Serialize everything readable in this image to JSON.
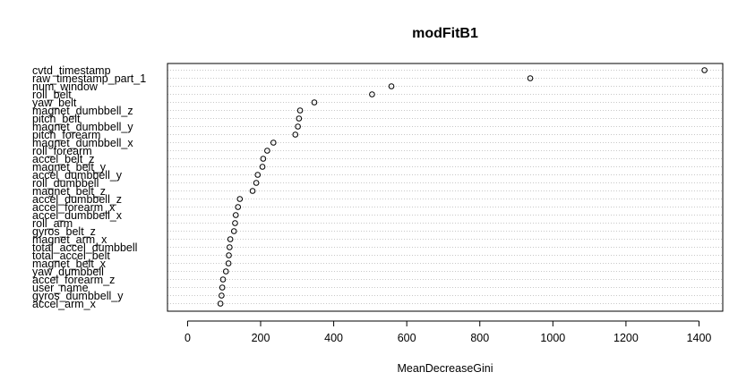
{
  "chart_data": {
    "type": "scatter",
    "title": "modFitB1",
    "xlabel": "MeanDecreaseGini",
    "ylabel": "",
    "xlim": [
      -55,
      1465
    ],
    "xticks": [
      0,
      200,
      400,
      600,
      800,
      1000,
      1200,
      1400
    ],
    "grid": "horizontal dotted lines per variable",
    "series": [
      {
        "categories": [
          "cvtd_timestamp",
          "raw_timestamp_part_1",
          "num_window",
          "roll_belt",
          "yaw_belt",
          "magnet_dumbbell_z",
          "pitch_belt",
          "magnet_dumbbell_y",
          "pitch_forearm",
          "magnet_dumbbell_x",
          "roll_forearm",
          "accel_belt_z",
          "magnet_belt_y",
          "accel_dumbbell_y",
          "roll_dumbbell",
          "magnet_belt_z",
          "accel_dumbbell_z",
          "accel_forearm_x",
          "accel_dumbbell_x",
          "roll_arm",
          "gyros_belt_z",
          "magnet_arm_x",
          "total_accel_dumbbell",
          "total_accel_belt",
          "magnet_belt_x",
          "yaw_dumbbell",
          "accel_forearm_z",
          "user_name",
          "gyros_dumbbell_y",
          "accel_arm_x"
        ],
        "values": [
          1415,
          938,
          558,
          505,
          347,
          308,
          305,
          302,
          295,
          235,
          218,
          207,
          205,
          192,
          188,
          178,
          143,
          138,
          132,
          130,
          127,
          117,
          115,
          113,
          112,
          105,
          97,
          95,
          93,
          90
        ]
      }
    ]
  }
}
